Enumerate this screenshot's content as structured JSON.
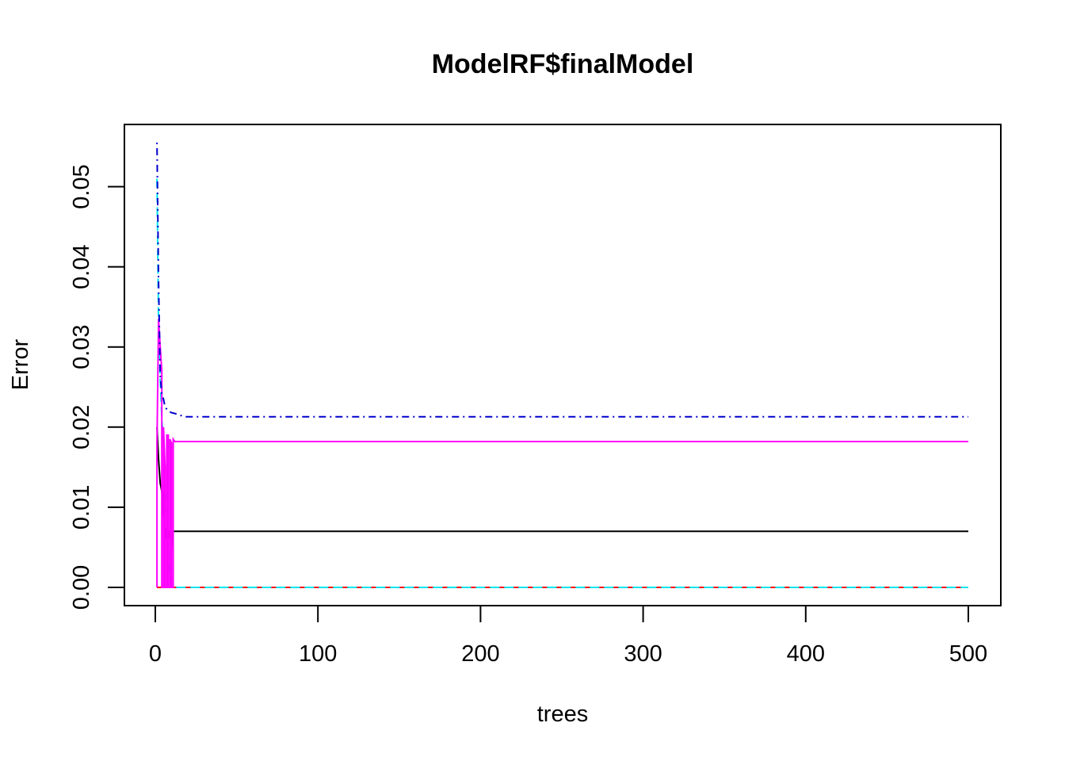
{
  "chart_data": {
    "type": "line",
    "title": "ModelRF$finalModel",
    "xlabel": "trees",
    "ylabel": "Error",
    "xlim": [
      0,
      500
    ],
    "ylim": [
      0,
      0.055
    ],
    "x_ticks": [
      0,
      100,
      200,
      300,
      400,
      500
    ],
    "x_tick_labels": [
      "0",
      "100",
      "200",
      "300",
      "400",
      "500"
    ],
    "y_ticks": [
      0,
      0.01,
      0.02,
      0.03,
      0.04,
      0.05
    ],
    "y_tick_labels": [
      "0.00",
      "0.01",
      "0.02",
      "0.03",
      "0.04",
      "0.05"
    ],
    "grid": false,
    "series": [
      {
        "color": "#0000cd",
        "dash": "dashdot",
        "x": [
          1,
          2,
          3,
          4,
          5,
          6,
          8,
          10,
          12,
          15,
          18,
          25,
          50,
          100,
          500
        ],
        "y": [
          0.0555,
          0.038,
          0.0265,
          0.024,
          0.0235,
          0.0225,
          0.022,
          0.0218,
          0.0217,
          0.0215,
          0.0213,
          0.0213,
          0.0213,
          0.0213,
          0.0213
        ]
      },
      {
        "color": "#ff00ff",
        "dash": "solid",
        "x": [
          1,
          1,
          2,
          3,
          4,
          4,
          5,
          5,
          6,
          6,
          7,
          7,
          8,
          8,
          9,
          9,
          10,
          10,
          11,
          11,
          12,
          15,
          500
        ],
        "y": [
          0,
          0.018,
          0.0335,
          0.03,
          0.027,
          0,
          0,
          0.02,
          0.015,
          0,
          0,
          0.019,
          0.019,
          0,
          0,
          0.0185,
          0.018,
          0,
          0,
          0.0185,
          0.0182,
          0.0182,
          0.0182
        ]
      },
      {
        "color": "#000000",
        "dash": "solid",
        "x": [
          1,
          2,
          3,
          4,
          5,
          6,
          7,
          8,
          9,
          10,
          11,
          12,
          20,
          500
        ],
        "y": [
          0.02,
          0.016,
          0.013,
          0.012,
          0.009,
          0.006,
          0.0075,
          0.007,
          0.006,
          0.005,
          0.007,
          0.007,
          0.007,
          0.007
        ]
      },
      {
        "color": "#00e5ee",
        "dash": "dashed",
        "x": [
          1,
          2,
          3,
          4,
          5,
          6,
          7,
          8,
          9,
          10,
          500
        ],
        "y": [
          0.051,
          0.033,
          0.026,
          0.021,
          0.018,
          0.013,
          0.009,
          0.004,
          0.001,
          0,
          0
        ]
      },
      {
        "color": "#ff0000",
        "dash": "dashed",
        "x": [
          1,
          500
        ],
        "y": [
          0,
          0
        ]
      },
      {
        "color": "#00cd00",
        "dash": "dotted",
        "x": [
          1,
          500
        ],
        "y": [
          0,
          0
        ]
      }
    ]
  }
}
